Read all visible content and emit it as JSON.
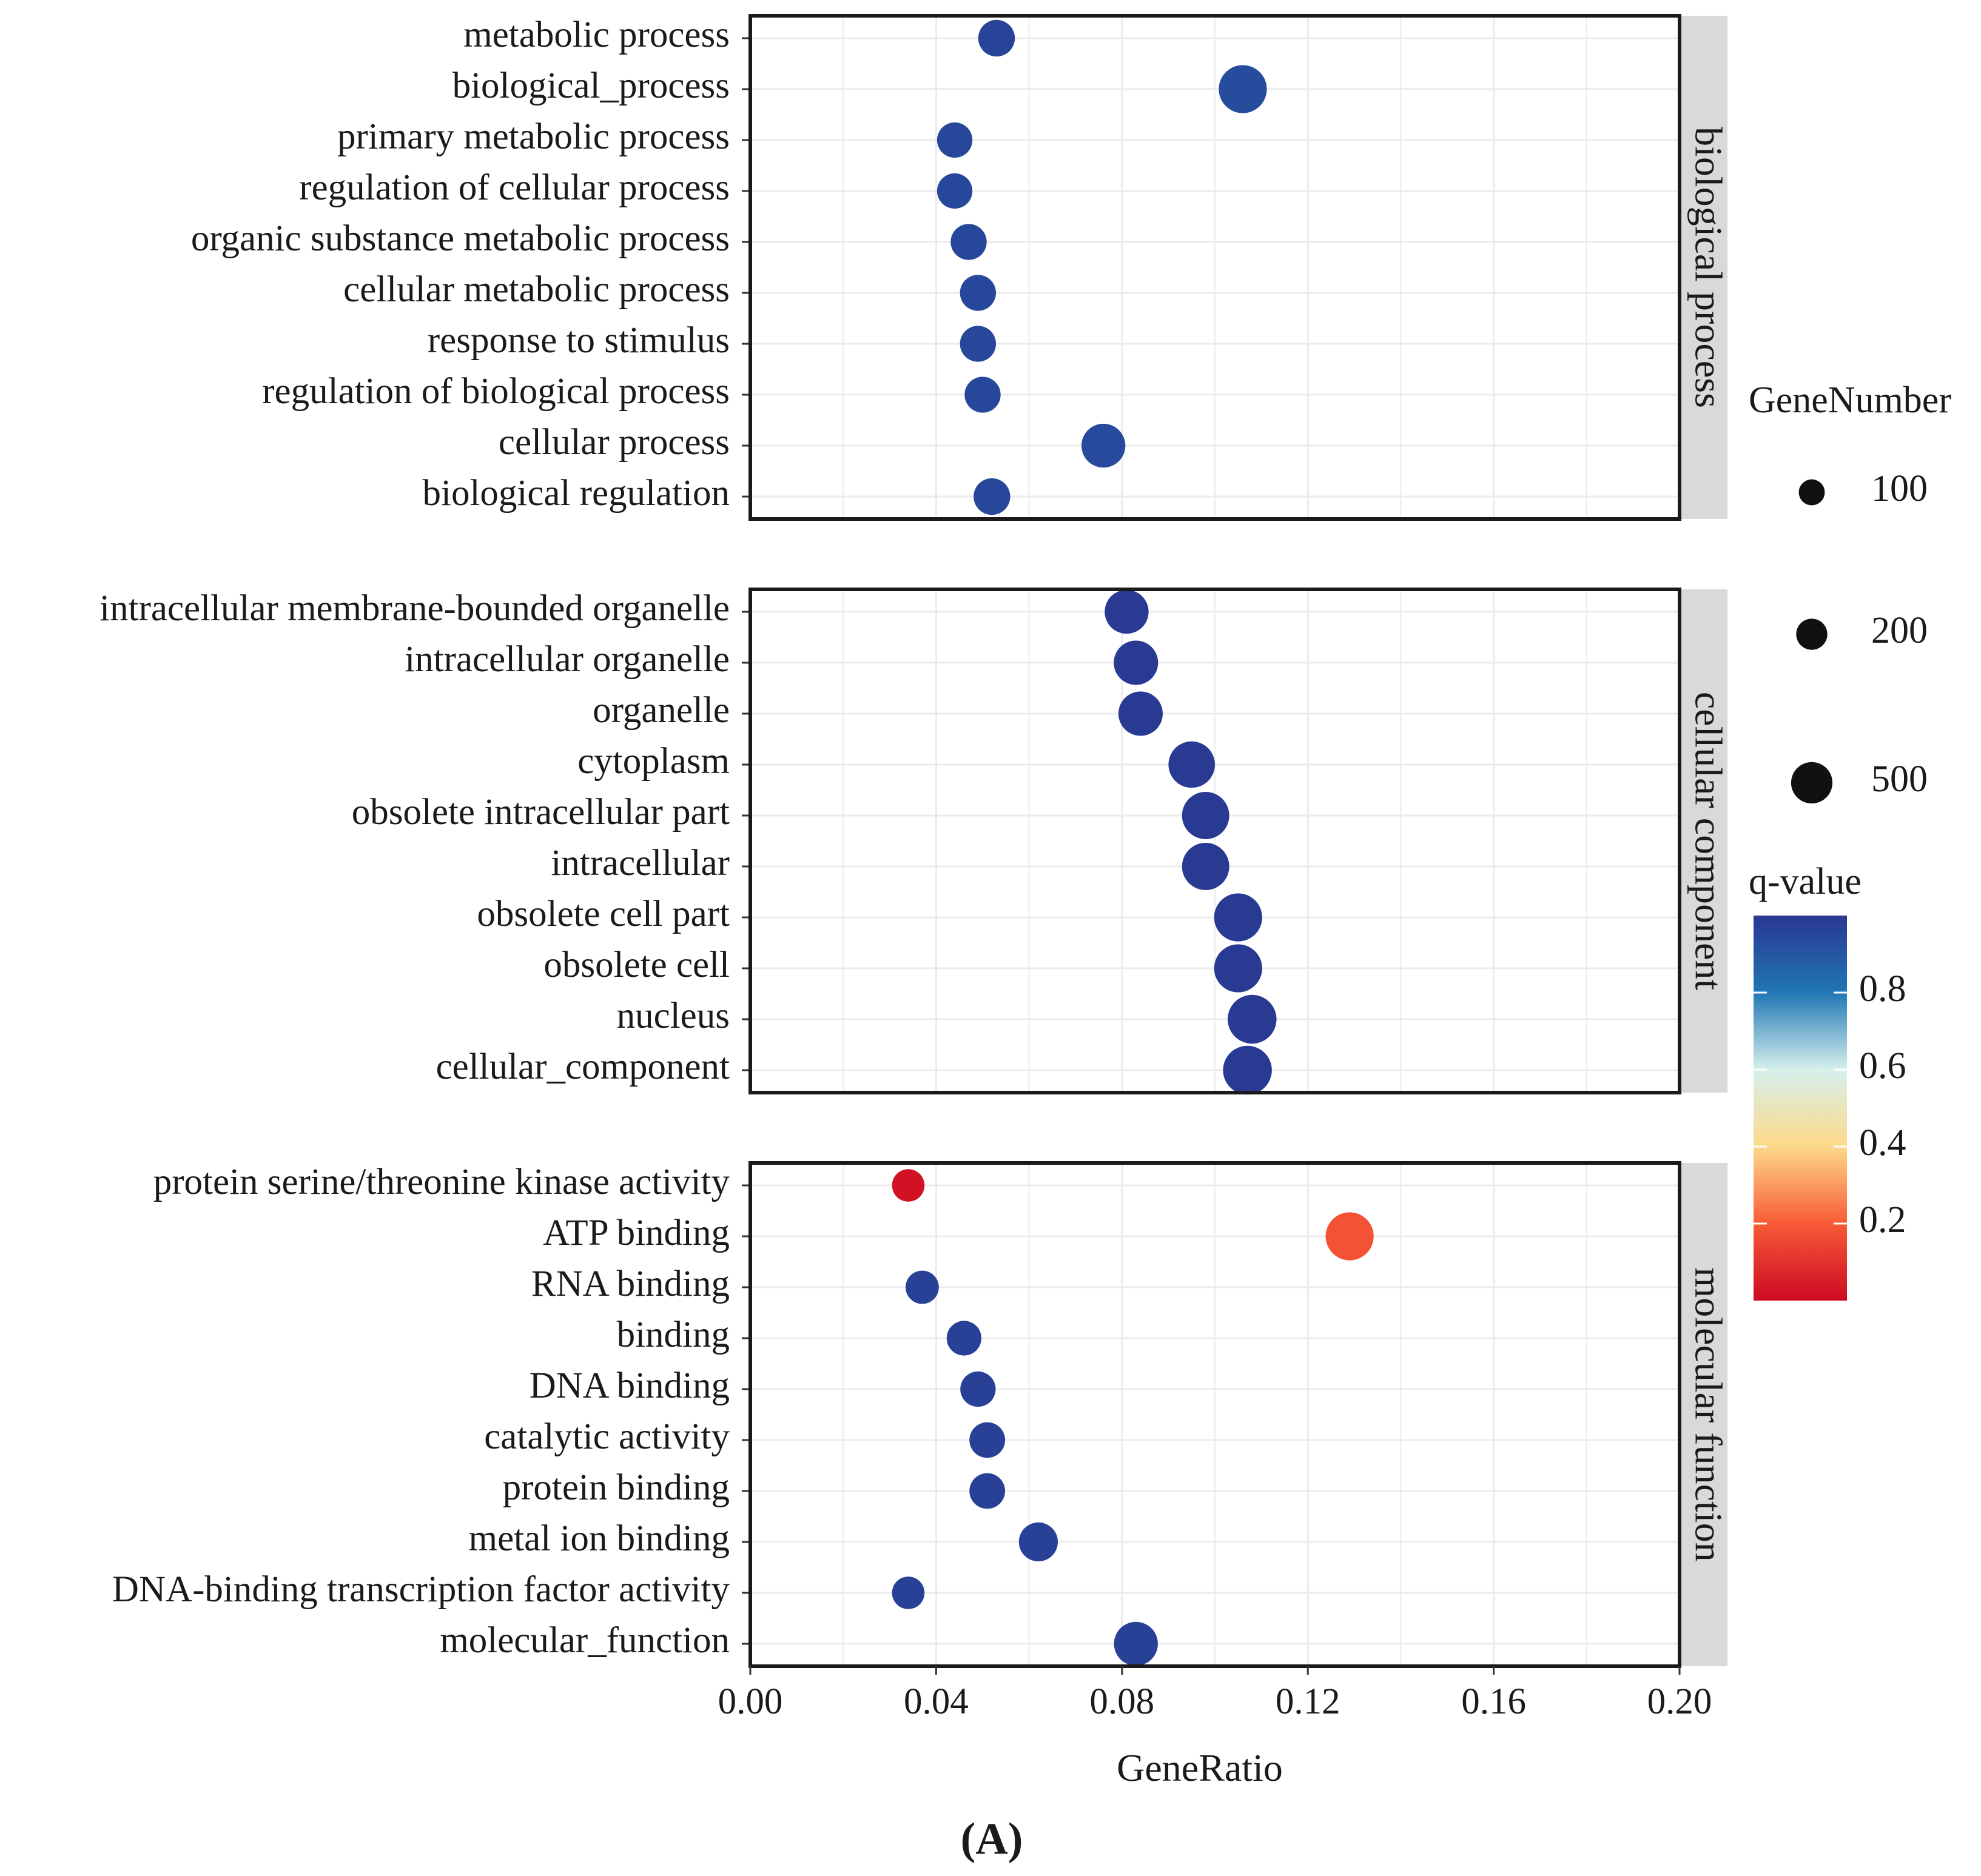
{
  "colors": {
    "q_low": "#cc0a22",
    "q_020": "#f75b36",
    "q_040": "#fdd98a",
    "q_060": "#d6f0ed",
    "q_080": "#1f77b4",
    "q_high": "#2a3791",
    "strip_bg": "#d9d9d9",
    "grid": "#ebebeb"
  },
  "chart_data": {
    "type": "scatter",
    "xlabel": "GeneRatio",
    "x_ticks": [
      "0.00",
      "0.04",
      "0.08",
      "0.12",
      "0.16",
      "0.20"
    ],
    "xlim": [
      0,
      0.2
    ],
    "panel_letter": "(A)",
    "facets": [
      {
        "name": "biological process",
        "points": [
          {
            "term": "metabolic process",
            "ratio": 0.053,
            "genes": 160,
            "q": 0.96
          },
          {
            "term": "biological_process",
            "ratio": 0.106,
            "genes": 400,
            "q": 0.93
          },
          {
            "term": "primary metabolic process",
            "ratio": 0.044,
            "genes": 140,
            "q": 0.95
          },
          {
            "term": "regulation of cellular process",
            "ratio": 0.044,
            "genes": 140,
            "q": 0.95
          },
          {
            "term": "organic substance metabolic process",
            "ratio": 0.047,
            "genes": 150,
            "q": 0.95
          },
          {
            "term": "cellular metabolic process",
            "ratio": 0.049,
            "genes": 150,
            "q": 0.95
          },
          {
            "term": "response to stimulus",
            "ratio": 0.049,
            "genes": 150,
            "q": 0.95
          },
          {
            "term": "regulation of biological process",
            "ratio": 0.05,
            "genes": 150,
            "q": 0.95
          },
          {
            "term": "cellular process",
            "ratio": 0.076,
            "genes": 300,
            "q": 0.94
          },
          {
            "term": "biological regulation",
            "ratio": 0.052,
            "genes": 160,
            "q": 0.95
          }
        ]
      },
      {
        "name": "cellular component",
        "points": [
          {
            "term": "intracellular membrane-bounded organelle",
            "ratio": 0.081,
            "genes": 300,
            "q": 0.99
          },
          {
            "term": "intracellular organelle",
            "ratio": 0.083,
            "genes": 310,
            "q": 0.99
          },
          {
            "term": "organelle",
            "ratio": 0.084,
            "genes": 310,
            "q": 0.99
          },
          {
            "term": "cytoplasm",
            "ratio": 0.095,
            "genes": 360,
            "q": 0.99
          },
          {
            "term": "obsolete intracellular part",
            "ratio": 0.098,
            "genes": 380,
            "q": 0.99
          },
          {
            "term": "intracellular",
            "ratio": 0.098,
            "genes": 380,
            "q": 0.99
          },
          {
            "term": "obsolete cell part",
            "ratio": 0.105,
            "genes": 400,
            "q": 0.99
          },
          {
            "term": "obsolete cell",
            "ratio": 0.105,
            "genes": 400,
            "q": 0.99
          },
          {
            "term": "nucleus",
            "ratio": 0.108,
            "genes": 420,
            "q": 0.99
          },
          {
            "term": "cellular_component",
            "ratio": 0.107,
            "genes": 420,
            "q": 0.99
          }
        ]
      },
      {
        "name": "molecular function",
        "points": [
          {
            "term": "protein serine/threonine kinase activity",
            "ratio": 0.034,
            "genes": 100,
            "q": 0.02
          },
          {
            "term": "ATP binding",
            "ratio": 0.129,
            "genes": 400,
            "q": 0.18
          },
          {
            "term": "RNA binding",
            "ratio": 0.037,
            "genes": 110,
            "q": 0.97
          },
          {
            "term": "binding",
            "ratio": 0.046,
            "genes": 130,
            "q": 0.97
          },
          {
            "term": "DNA binding",
            "ratio": 0.049,
            "genes": 140,
            "q": 0.97
          },
          {
            "term": "catalytic activity",
            "ratio": 0.051,
            "genes": 145,
            "q": 0.97
          },
          {
            "term": "protein binding",
            "ratio": 0.051,
            "genes": 145,
            "q": 0.97
          },
          {
            "term": "metal ion binding",
            "ratio": 0.062,
            "genes": 200,
            "q": 0.97
          },
          {
            "term": "DNA-binding transcription factor activity",
            "ratio": 0.034,
            "genes": 100,
            "q": 0.97
          },
          {
            "term": "molecular_function",
            "ratio": 0.083,
            "genes": 300,
            "q": 0.97
          }
        ]
      }
    ],
    "size_legend": {
      "title": "GeneNumber",
      "values": [
        100,
        200,
        500
      ],
      "labels": [
        "100",
        "200",
        "500"
      ]
    },
    "color_legend": {
      "title": "q-value",
      "range": [
        0.0,
        1.0
      ],
      "ticks": [
        0.8,
        0.6,
        0.4,
        0.2
      ],
      "labels": [
        "0.8",
        "0.6",
        "0.4",
        "0.2"
      ]
    }
  }
}
